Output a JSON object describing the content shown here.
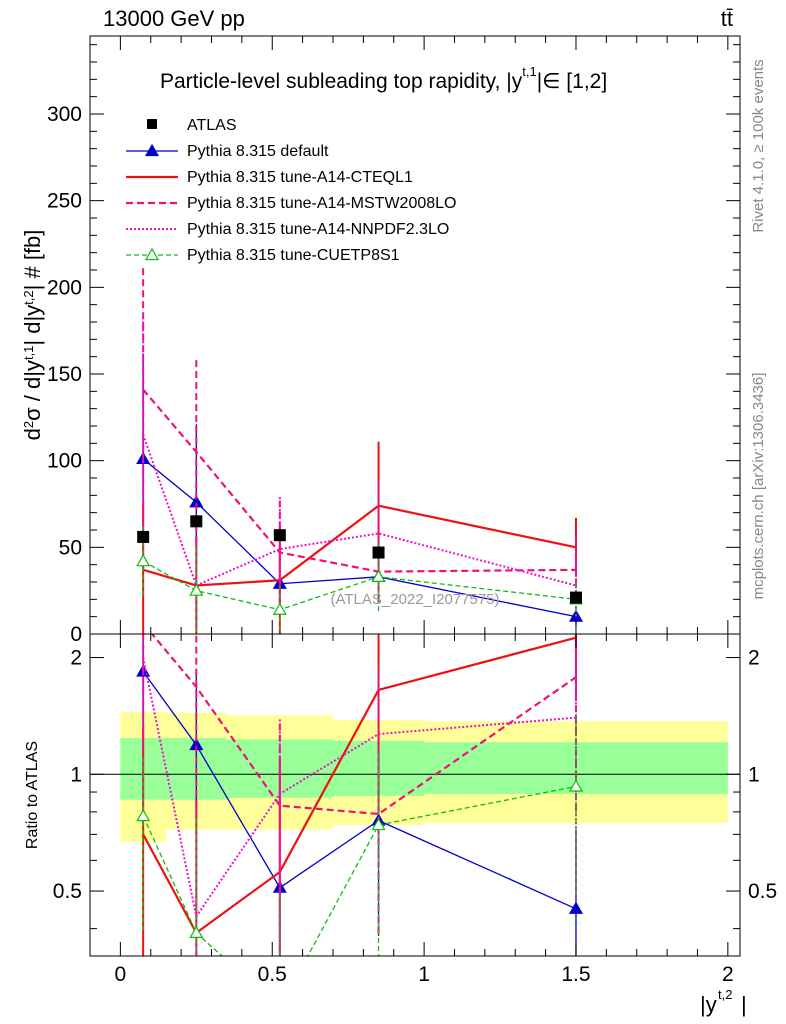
{
  "header": {
    "energy_label": "13000 GeV pp",
    "process_label": "tt̄"
  },
  "side_text": {
    "rivet": "Rivet 4.1.0, ≥ 100k events",
    "mcplots": "mcplots.cern.ch [arXiv:1306.3436]"
  },
  "chart_data": {
    "type": "line",
    "title": "Particle-level subleading top rapidity, |y",
    "title_sup": "t,1",
    "title_tail": "|∈ [1,2]",
    "analysis_id": "(ATLAS_2022_I2077575)",
    "ylabel_main": "d²σ / d|y^t,1| d|y^t,2| # [fb]",
    "ylabel_ratio": "Ratio to ATLAS",
    "xlabel": "|y",
    "xlabel_sup": "t,2",
    "xlim": [
      -0.1,
      2.04
    ],
    "ylim_main": [
      0,
      345
    ],
    "ylim_ratio": [
      0.34,
      2.3
    ],
    "x_ticks": [
      {
        "v": 0,
        "label": "0"
      },
      {
        "v": 0.5,
        "label": "0.5"
      },
      {
        "v": 1,
        "label": "1"
      },
      {
        "v": 1.5,
        "label": "1.5"
      },
      {
        "v": 2,
        "label": "2"
      }
    ],
    "y_ticks_main": [
      {
        "v": 0,
        "label": "0"
      },
      {
        "v": 50,
        "label": "50"
      },
      {
        "v": 100,
        "label": "100"
      },
      {
        "v": 150,
        "label": "150"
      },
      {
        "v": 200,
        "label": "200"
      },
      {
        "v": 250,
        "label": "250"
      },
      {
        "v": 300,
        "label": "300"
      }
    ],
    "y_ticks_ratio": [
      {
        "v": 0.5,
        "label": "0.5"
      },
      {
        "v": 1,
        "label": "1"
      },
      {
        "v": 2,
        "label": "2"
      }
    ],
    "bins": [
      0,
      0.15,
      0.35,
      0.7,
      1.0,
      2.0
    ],
    "x": [
      0.075,
      0.25,
      0.525,
      0.85,
      1.5
    ],
    "data": {
      "name": "ATLAS",
      "values": [
        56,
        65,
        57,
        47,
        21
      ],
      "band_inner": [
        [
          0.86,
          1.24
        ],
        [
          0.86,
          1.24
        ],
        [
          0.87,
          1.23
        ],
        [
          0.88,
          1.22
        ],
        [
          0.89,
          1.21
        ]
      ],
      "band_outer": [
        [
          0.67,
          1.45
        ],
        [
          0.72,
          1.44
        ],
        [
          0.72,
          1.42
        ],
        [
          0.74,
          1.38
        ],
        [
          0.75,
          1.37
        ]
      ]
    },
    "series": [
      {
        "name": "Pythia 8.315 default",
        "color": "#0000cc",
        "dash": "",
        "width": 1.3,
        "marker": "triangle-filled",
        "values": [
          101,
          76,
          29,
          33,
          10
        ],
        "err_up": [
          60,
          45,
          20,
          15,
          5
        ],
        "err_dn": [
          50,
          45,
          20,
          15,
          5
        ],
        "ratio": [
          1.84,
          1.19,
          0.51,
          0.76,
          0.45
        ]
      },
      {
        "name": "Pythia 8.315 tune-A14-CTEQL1",
        "color": "#ee1111",
        "dash": "",
        "width": 2.2,
        "marker": "none",
        "values": [
          37,
          28,
          31,
          74,
          50
        ],
        "err_up": [
          37,
          28,
          31,
          37,
          17
        ],
        "err_dn": [
          37,
          28,
          31,
          37,
          17
        ],
        "ratio": [
          0.7,
          0.39,
          0.56,
          1.65,
          2.25
        ]
      },
      {
        "name": "Pythia 8.315 tune-A14-MSTW2008LO",
        "color": "#ee1177",
        "dash": "7,4",
        "width": 2.2,
        "marker": "none",
        "values": [
          141,
          105,
          47,
          36,
          37
        ],
        "err_up": [
          70,
          53,
          30,
          18,
          20
        ],
        "err_dn": [
          70,
          53,
          30,
          18,
          20
        ],
        "ratio": [
          2.45,
          1.68,
          0.83,
          0.79,
          1.78
        ]
      },
      {
        "name": "Pythia 8.315 tune-A14-NNPDF2.3LO",
        "color": "#ee11cc",
        "dash": "2,2",
        "width": 2,
        "marker": "none",
        "values": [
          115,
          28,
          49,
          58,
          28
        ],
        "err_up": [
          70,
          25,
          30,
          30,
          18
        ],
        "err_dn": [
          70,
          25,
          30,
          30,
          18
        ],
        "ratio": [
          2.0,
          0.43,
          0.89,
          1.27,
          1.4
        ]
      },
      {
        "name": "Pythia 8.315 tune-CUETP8S1",
        "color": "#11bb11",
        "dash": "5,3",
        "width": 1.3,
        "marker": "triangle-open",
        "values": [
          42,
          25,
          14,
          33,
          20
        ],
        "err_up": [
          20,
          25,
          14,
          20,
          10
        ],
        "err_dn": [
          20,
          25,
          14,
          20,
          10
        ],
        "ratio": [
          0.78,
          0.39,
          0.25,
          0.74,
          0.93
        ]
      }
    ]
  }
}
